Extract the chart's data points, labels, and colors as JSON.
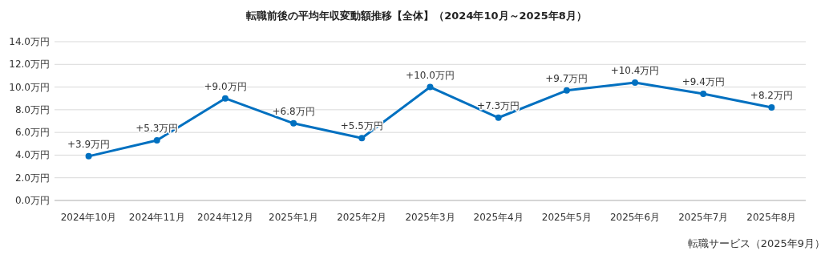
{
  "chart_data": {
    "type": "line",
    "title": "転職前後の平均年収変動額推移【全体】（2024年10月～2025年8月）",
    "categories": [
      "2024年10月",
      "2024年11月",
      "2024年12月",
      "2025年1月",
      "2025年2月",
      "2025年3月",
      "2025年4月",
      "2025年5月",
      "2025年6月",
      "2025年7月",
      "2025年8月"
    ],
    "values": [
      3.9,
      5.3,
      9.0,
      6.8,
      5.5,
      10.0,
      7.3,
      9.7,
      10.4,
      9.4,
      8.2
    ],
    "value_labels": [
      "+3.9万円",
      "+5.3万円",
      "+9.0万円",
      "+6.8万円",
      "+5.5万円",
      "+10.0万円",
      "+7.3万円",
      "+9.7万円",
      "+10.4万円",
      "+9.4万円",
      "+8.2万円"
    ],
    "color": "#0070c0",
    "ylim": [
      0,
      14
    ],
    "yticks": [
      {
        "value": 0,
        "label": "0.0万円"
      },
      {
        "value": 2,
        "label": "2.0万円"
      },
      {
        "value": 4,
        "label": "4.0万円"
      },
      {
        "value": 6,
        "label": "6.0万円"
      },
      {
        "value": 8,
        "label": "8.0万円"
      },
      {
        "value": 10,
        "label": "10.0万円"
      },
      {
        "value": 12,
        "label": "12.0万円"
      },
      {
        "value": 14,
        "label": "14.0万円"
      }
    ],
    "grid": "y",
    "marker": "circle",
    "annotations": [
      "転職サービス（2025年9月）"
    ]
  }
}
